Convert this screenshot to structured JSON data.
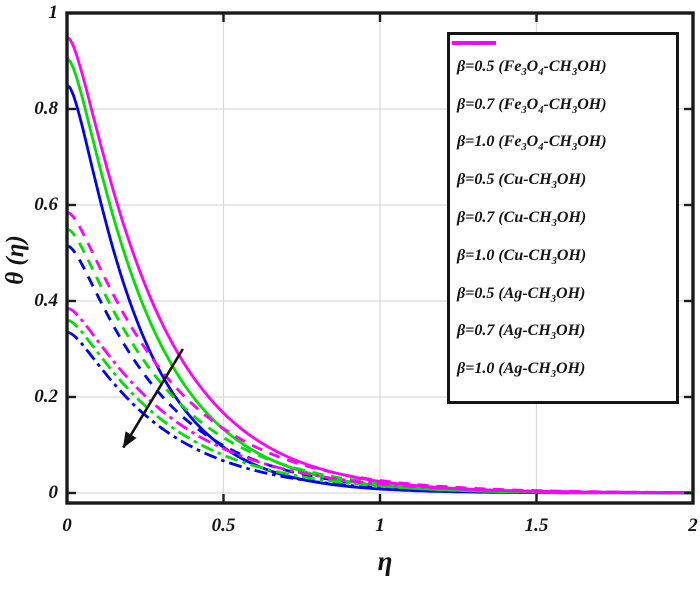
{
  "chart_data": {
    "type": "line",
    "title": "",
    "xlabel": "η",
    "ylabel": "θ (η)",
    "xlim": [
      0,
      2
    ],
    "ylim": [
      0,
      1
    ],
    "grid": true,
    "legend_position": "upper-right",
    "x_ticks": {
      "values": [
        0,
        0.5,
        1,
        1.5,
        2
      ],
      "labels": [
        "0",
        "0.5",
        "1",
        "1.5",
        "2"
      ]
    },
    "y_ticks": {
      "values": [
        0,
        0.2,
        0.4,
        0.6,
        0.8,
        1
      ],
      "labels": [
        "0",
        "0.2",
        "0.4",
        "0.6",
        "0.8",
        "1"
      ]
    },
    "eta_samples": [
      0,
      0.1,
      0.25,
      0.5,
      0.75,
      1,
      1.5,
      2
    ],
    "series": [
      {
        "id": "fe3o4-beta05",
        "label": "β=0.5 (Fe_3O_4-CH_3OH)",
        "color": "#0000ff",
        "linestyle": "solid",
        "theta0": 0.85,
        "decay": 4.9,
        "theta_samples": [
          0.85,
          0.63,
          0.32,
          0.1,
          0.03,
          0.008,
          0.001,
          0.0
        ]
      },
      {
        "id": "fe3o4-beta07",
        "label": "β=0.7 (Fe_3O_4-CH_3OH)",
        "color": "#0000ff",
        "linestyle": "dashed",
        "theta0": 0.515,
        "decay": 3.7,
        "theta_samples": [
          0.515,
          0.41,
          0.24,
          0.1,
          0.04,
          0.016,
          0.002,
          0.001
        ]
      },
      {
        "id": "fe3o4-beta10",
        "label": "β=1.0 (Fe_3O_4-CH_3OH)",
        "color": "#0000ff",
        "linestyle": "dashdot",
        "theta0": 0.335,
        "decay": 3.6,
        "theta_samples": [
          0.335,
          0.26,
          0.16,
          0.07,
          0.027,
          0.011,
          0.002,
          0.001
        ]
      },
      {
        "id": "cu-beta05",
        "label": "β=0.5 (Cu-CH_3OH)",
        "color": "#00e000",
        "linestyle": "solid",
        "theta0": 0.905,
        "decay": 4.3,
        "theta_samples": [
          0.905,
          0.69,
          0.38,
          0.13,
          0.046,
          0.016,
          0.002,
          0.001
        ]
      },
      {
        "id": "cu-beta07",
        "label": "β=0.7 (Cu-CH_3OH)",
        "color": "#00e000",
        "linestyle": "dashed",
        "theta0": 0.55,
        "decay": 3.5,
        "theta_samples": [
          0.55,
          0.44,
          0.27,
          0.115,
          0.048,
          0.02,
          0.004,
          0.001
        ]
      },
      {
        "id": "cu-beta10",
        "label": "β=1.0 (Cu-CH_3OH)",
        "color": "#00e000",
        "linestyle": "dashdot",
        "theta0": 0.36,
        "decay": 3.4,
        "theta_samples": [
          0.36,
          0.29,
          0.18,
          0.078,
          0.034,
          0.014,
          0.003,
          0.001
        ]
      },
      {
        "id": "ag-beta05",
        "label": "β=0.5 (Ag-CH_3OH)",
        "color": "#ff00ff",
        "linestyle": "solid",
        "theta0": 0.95,
        "decay": 3.9,
        "theta_samples": [
          0.95,
          0.74,
          0.43,
          0.166,
          0.063,
          0.024,
          0.003,
          0.001
        ]
      },
      {
        "id": "ag-beta07",
        "label": "β=0.7 (Ag-CH_3OH)",
        "color": "#ff00ff",
        "linestyle": "dashed",
        "theta0": 0.585,
        "decay": 3.3,
        "theta_samples": [
          0.585,
          0.476,
          0.3,
          0.134,
          0.059,
          0.026,
          0.005,
          0.002
        ]
      },
      {
        "id": "ag-beta10",
        "label": "β=1.0 (Ag-CH_3OH)",
        "color": "#ff00ff",
        "linestyle": "dashdot",
        "theta0": 0.385,
        "decay": 3.2,
        "theta_samples": [
          0.385,
          0.316,
          0.203,
          0.092,
          0.041,
          0.019,
          0.004,
          0.002
        ]
      }
    ],
    "annotation": {
      "type": "arrow",
      "from": {
        "eta": 0.37,
        "theta": 0.3
      },
      "to": {
        "eta": 0.18,
        "theta": 0.095
      },
      "color": "#111111"
    }
  },
  "style": {
    "axis_color": "#1a1a1a",
    "grid_color": "#d9d9d9",
    "background": "#ffffff"
  }
}
